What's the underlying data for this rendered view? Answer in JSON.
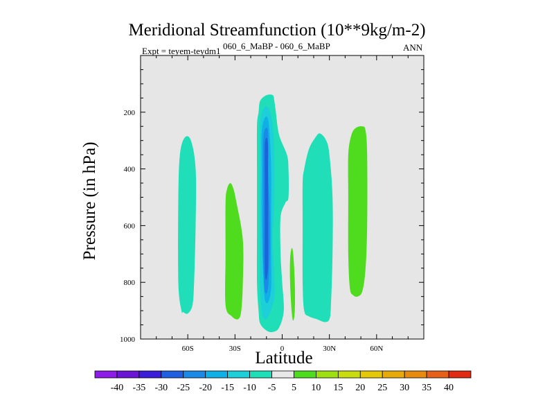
{
  "chart_data": {
    "type": "contour",
    "title": "Meridional Streamfunction (10**9kg/m-2)",
    "subtitle_left": "Expt = teyem-teydm1",
    "subtitle_center": "060_6_MaBP - 060_6_MaBP",
    "subtitle_right": "ANN",
    "xlabel": "Latitude",
    "ylabel": "Pressure (in hPa)",
    "xlim": [
      -90,
      90
    ],
    "ylim": [
      1000,
      0
    ],
    "x_ticks": [
      {
        "value": -60,
        "label": "60S"
      },
      {
        "value": -30,
        "label": "30S"
      },
      {
        "value": 0,
        "label": "0"
      },
      {
        "value": 30,
        "label": "30N"
      },
      {
        "value": 60,
        "label": "60N"
      }
    ],
    "y_ticks": [
      {
        "value": 200,
        "label": "200"
      },
      {
        "value": 400,
        "label": "400"
      },
      {
        "value": 600,
        "label": "600"
      },
      {
        "value": 800,
        "label": "800"
      },
      {
        "value": 1000,
        "label": "1000"
      }
    ],
    "background_color": "#e6e6e6",
    "cells": [
      {
        "name": "cell-60s",
        "level": -5,
        "points": [
          [
            -64,
            900
          ],
          [
            -66,
            800
          ],
          [
            -66,
            500
          ],
          [
            -65,
            350
          ],
          [
            -62,
            290
          ],
          [
            -58,
            300
          ],
          [
            -55,
            400
          ],
          [
            -55,
            600
          ],
          [
            -56,
            800
          ],
          [
            -57,
            880
          ],
          [
            -60,
            910
          ],
          [
            -63,
            905
          ]
        ]
      },
      {
        "name": "cell-35s",
        "level": 5,
        "points": [
          [
            -35,
            470
          ],
          [
            -33,
            450
          ],
          [
            -31,
            470
          ],
          [
            -29,
            520
          ],
          [
            -25,
            650
          ],
          [
            -25,
            800
          ],
          [
            -26,
            900
          ],
          [
            -28,
            930
          ],
          [
            -32,
            920
          ],
          [
            -36,
            880
          ],
          [
            -36,
            700
          ],
          [
            -36,
            520
          ]
        ]
      },
      {
        "name": "cell-equator-outer",
        "level": -5,
        "points": [
          [
            -15,
            200
          ],
          [
            -14,
            160
          ],
          [
            -10,
            140
          ],
          [
            -6,
            140
          ],
          [
            -5,
            160
          ],
          [
            -4,
            200
          ],
          [
            -2,
            280
          ],
          [
            3,
            350
          ],
          [
            4,
            400
          ],
          [
            4,
            500
          ],
          [
            2,
            520
          ],
          [
            -1,
            570
          ],
          [
            -1,
            700
          ],
          [
            0,
            800
          ],
          [
            1,
            900
          ],
          [
            -2,
            960
          ],
          [
            -6,
            975
          ],
          [
            -10,
            970
          ],
          [
            -14,
            945
          ],
          [
            -15,
            900
          ],
          [
            -16,
            800
          ],
          [
            -16,
            600
          ],
          [
            -16,
            400
          ],
          [
            -16,
            250
          ]
        ]
      },
      {
        "name": "cell-equator-mid1",
        "level": -10,
        "points": [
          [
            -14,
            240
          ],
          [
            -12,
            190
          ],
          [
            -10,
            180
          ],
          [
            -8,
            195
          ],
          [
            -6,
            250
          ],
          [
            -5,
            350
          ],
          [
            -5,
            500
          ],
          [
            -6,
            650
          ],
          [
            -5,
            780
          ],
          [
            -5,
            850
          ],
          [
            -8,
            910
          ],
          [
            -11,
            930
          ],
          [
            -13,
            900
          ],
          [
            -14,
            800
          ],
          [
            -14,
            600
          ],
          [
            -14,
            400
          ]
        ]
      },
      {
        "name": "cell-equator-mid2",
        "level": -15,
        "points": [
          [
            -13,
            270
          ],
          [
            -11,
            220
          ],
          [
            -9,
            225
          ],
          [
            -8,
            280
          ],
          [
            -7,
            400
          ],
          [
            -7,
            550
          ],
          [
            -7,
            700
          ],
          [
            -7,
            820
          ],
          [
            -9,
            870
          ],
          [
            -11,
            860
          ],
          [
            -12,
            780
          ],
          [
            -13,
            600
          ],
          [
            -13,
            400
          ]
        ]
      },
      {
        "name": "cell-equator-mid3",
        "level": -20,
        "points": [
          [
            -12,
            300
          ],
          [
            -11,
            260
          ],
          [
            -9,
            270
          ],
          [
            -9,
            400
          ],
          [
            -8,
            550
          ],
          [
            -8,
            700
          ],
          [
            -9,
            820
          ],
          [
            -11,
            830
          ],
          [
            -12,
            720
          ],
          [
            -12,
            550
          ],
          [
            -12,
            400
          ]
        ]
      },
      {
        "name": "cell-equator-core",
        "level": -25,
        "points": [
          [
            -11,
            320
          ],
          [
            -10,
            290
          ],
          [
            -9,
            320
          ],
          [
            -9,
            450
          ],
          [
            -9,
            600
          ],
          [
            -9,
            740
          ],
          [
            -10,
            790
          ],
          [
            -11,
            760
          ],
          [
            -11,
            600
          ],
          [
            -11,
            450
          ]
        ]
      },
      {
        "name": "cell-equator-thin",
        "level": 5,
        "points": [
          [
            6,
            680
          ],
          [
            7,
            700
          ],
          [
            8,
            800
          ],
          [
            8,
            900
          ],
          [
            7,
            935
          ],
          [
            6,
            900
          ],
          [
            5,
            800
          ],
          [
            5,
            720
          ]
        ]
      },
      {
        "name": "cell-30n",
        "level": -5,
        "points": [
          [
            14,
            400
          ],
          [
            17,
            330
          ],
          [
            21,
            290
          ],
          [
            24,
            275
          ],
          [
            28,
            300
          ],
          [
            30,
            350
          ],
          [
            32,
            500
          ],
          [
            32,
            700
          ],
          [
            31,
            880
          ],
          [
            30,
            930
          ],
          [
            27,
            940
          ],
          [
            22,
            930
          ],
          [
            17,
            920
          ],
          [
            14,
            900
          ],
          [
            13,
            800
          ],
          [
            13,
            600
          ],
          [
            13,
            450
          ]
        ]
      },
      {
        "name": "cell-50n",
        "level": 5,
        "points": [
          [
            42,
            350
          ],
          [
            44,
            280
          ],
          [
            47,
            255
          ],
          [
            51,
            250
          ],
          [
            53,
            265
          ],
          [
            54,
            350
          ],
          [
            54,
            600
          ],
          [
            53,
            750
          ],
          [
            51,
            830
          ],
          [
            48,
            850
          ],
          [
            45,
            845
          ],
          [
            43,
            820
          ],
          [
            42,
            700
          ],
          [
            42,
            500
          ]
        ]
      }
    ],
    "levels": [
      {
        "label": "-40",
        "color": "#8c1ce6"
      },
      {
        "label": "-35",
        "color": "#6a14d6"
      },
      {
        "label": "-30",
        "color": "#3a1ed8"
      },
      {
        "label": "-25",
        "color": "#2060e0"
      },
      {
        "label": "-20",
        "color": "#1a8ae6"
      },
      {
        "label": "-15",
        "color": "#10b0e6"
      },
      {
        "label": "-10",
        "color": "#1ccfd8"
      },
      {
        "label": "-5",
        "color": "#20deb8"
      },
      {
        "label": "5",
        "color": "#e8e8e8"
      },
      {
        "label": "10",
        "color": "#50dc1e"
      },
      {
        "label": "15",
        "color": "#9ee012"
      },
      {
        "label": "20",
        "color": "#c8dc10"
      },
      {
        "label": "25",
        "color": "#e6c80a"
      },
      {
        "label": "30",
        "color": "#e6aa0a"
      },
      {
        "label": "35",
        "color": "#e68a10"
      },
      {
        "label": "40",
        "color": "#e6601a"
      },
      {
        "label": "",
        "color": "#e02a14"
      }
    ],
    "level_fill": {
      "-25": "#1a64d8",
      "-20": "#1a8ae6",
      "-15": "#10b0e6",
      "-10": "#1ccfd8",
      "-5": "#20deb8",
      "5": "#50dc1e"
    }
  }
}
